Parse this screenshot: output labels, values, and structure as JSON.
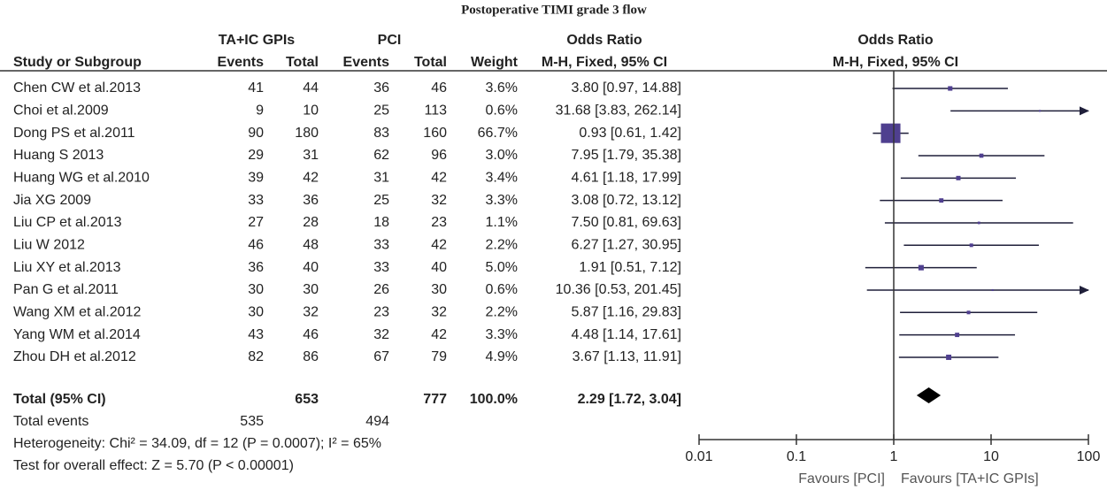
{
  "chart_data": {
    "type": "forest",
    "title": "Postoperative TIMI grade 3 flow",
    "group_headers": [
      "TA+IC GPIs",
      "PCI",
      "Odds Ratio",
      "Odds Ratio"
    ],
    "column_headers": [
      "Study or Subgroup",
      "Events",
      "Total",
      "Events",
      "Total",
      "Weight",
      "M-H, Fixed, 95% CI",
      "M-H, Fixed, 95% CI"
    ],
    "studies": [
      "Chen CW et al.2013",
      "Choi et al.2009",
      "Dong PS et al.2011",
      "Huang S 2013",
      "Huang WG et al.2010",
      "Jia XG 2009",
      "Liu CP et al.2013",
      "Liu W 2012",
      "Liu XY et al.2013",
      "Pan G et al.2011",
      "Wang XM et al.2012",
      "Yang WM et al.2014",
      "Zhou DH et al.2012"
    ],
    "events1": [
      41,
      9,
      90,
      29,
      39,
      33,
      27,
      46,
      36,
      30,
      30,
      43,
      82
    ],
    "total1": [
      44,
      10,
      180,
      31,
      42,
      36,
      28,
      48,
      40,
      30,
      32,
      46,
      86
    ],
    "events2": [
      36,
      25,
      83,
      62,
      31,
      25,
      18,
      33,
      33,
      26,
      23,
      32,
      67
    ],
    "total2": [
      46,
      113,
      160,
      96,
      42,
      32,
      23,
      42,
      40,
      30,
      32,
      42,
      79
    ],
    "weights": [
      3.6,
      0.6,
      66.7,
      3.0,
      3.4,
      3.3,
      1.1,
      2.2,
      5.0,
      0.6,
      2.2,
      3.3,
      4.9
    ],
    "weight_labels": [
      "3.6%",
      "0.6%",
      "66.7%",
      "3.0%",
      "3.4%",
      "3.3%",
      "1.1%",
      "2.2%",
      "5.0%",
      "0.6%",
      "2.2%",
      "3.3%",
      "4.9%"
    ],
    "values": [
      3.8,
      31.68,
      0.93,
      7.95,
      4.61,
      3.08,
      7.5,
      6.27,
      1.91,
      10.36,
      5.87,
      4.48,
      3.67
    ],
    "ci_low": [
      0.97,
      3.83,
      0.61,
      1.79,
      1.18,
      0.72,
      0.81,
      1.27,
      0.51,
      0.53,
      1.16,
      1.14,
      1.13
    ],
    "ci_high": [
      14.88,
      262.14,
      1.42,
      35.38,
      17.99,
      13.12,
      69.63,
      30.95,
      7.12,
      201.45,
      29.83,
      17.61,
      11.91
    ],
    "value_labels": [
      "3.80 [0.97, 14.88]",
      "31.68 [3.83, 262.14]",
      "0.93 [0.61, 1.42]",
      "7.95 [1.79, 35.38]",
      "4.61 [1.18, 17.99]",
      "3.08 [0.72, 13.12]",
      "7.50 [0.81, 69.63]",
      "6.27 [1.27, 30.95]",
      "1.91 [0.51, 7.12]",
      "10.36 [0.53, 201.45]",
      "5.87 [1.16, 29.83]",
      "4.48 [1.14, 17.61]",
      "3.67 [1.13, 11.91]"
    ],
    "total": {
      "name": "Total (95% CI)",
      "total1": 653,
      "total2": 777,
      "weight": 100,
      "weight_label": "100.0%",
      "value": 2.29,
      "ci_low": 1.72,
      "ci_high": 3.04,
      "value_label": "2.29 [1.72, 3.04]"
    },
    "total_events": {
      "label": "Total events",
      "events1": 535,
      "events2": 494
    },
    "heterogeneity": "Heterogeneity: Chi² = 34.09, df = 12 (P = 0.0007); I² = 65%",
    "overall_effect": "Test for overall effect: Z = 5.70 (P < 0.00001)",
    "log_scale": true,
    "xlim": [
      0.01,
      100
    ],
    "xticks": [
      0.01,
      0.1,
      1,
      10,
      100
    ],
    "x_labels": [
      "Favours [PCI]",
      "Favours [TA+IC GPIs]"
    ],
    "marker_color": "#4f3f8f",
    "line_color": "#1f1f3a",
    "diamond_color": "#000000"
  }
}
